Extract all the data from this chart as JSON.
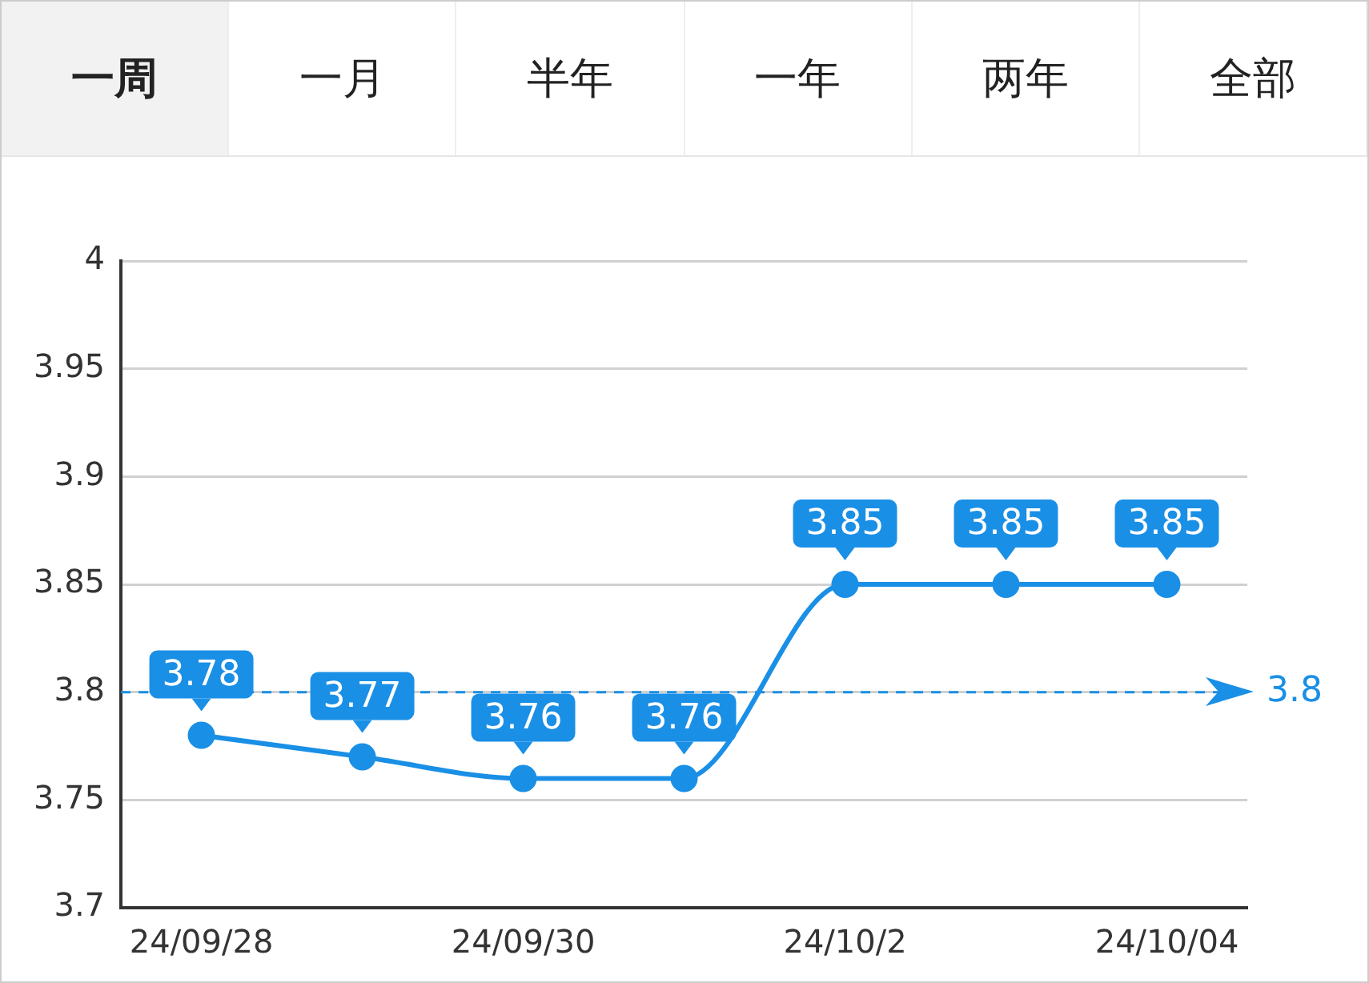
{
  "chart_data": {
    "type": "line",
    "annotations": [
      "一周",
      "一月",
      "半年",
      "一年",
      "两年",
      "全部"
    ],
    "categories": [
      "24/09/28",
      null,
      "24/09/30",
      null,
      "24/10/2",
      null,
      "24/10/04"
    ],
    "series": [
      {
        "color": "#1a8fe6",
        "values": [
          3.78,
          3.77,
          3.76,
          3.76,
          3.85,
          3.85,
          3.85
        ]
      }
    ],
    "ylim": [
      3.7,
      4
    ],
    "yticks": [
      3.7,
      3.75,
      3.8,
      3.85,
      3.9,
      3.95,
      4
    ],
    "grid": "y",
    "legend": false,
    "marker": "circle",
    "line_style": "solid",
    "data_labels": true,
    "ref_lines": [
      {
        "axis": "y",
        "value": 3.8,
        "label": "3.8",
        "color": "#1a8fe6",
        "line_style": "dashed"
      }
    ]
  }
}
